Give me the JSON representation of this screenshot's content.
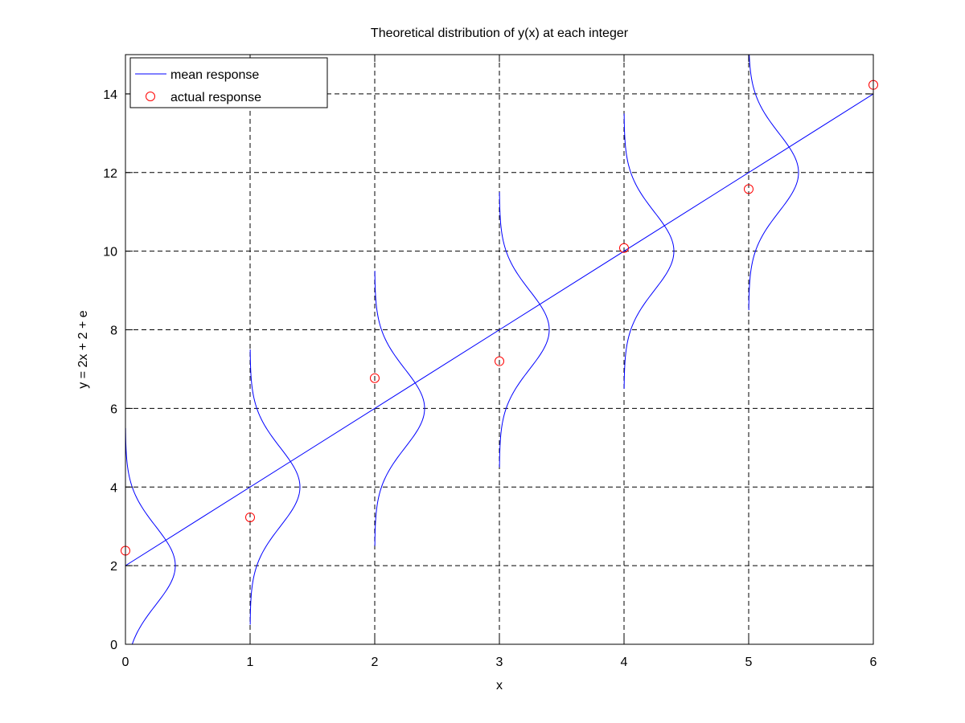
{
  "chart_data": {
    "type": "line",
    "title": "Theoretical distribution of y(x) at each integer",
    "xlabel": "x",
    "ylabel": "y = 2x + 2 + e",
    "xlim": [
      0,
      6
    ],
    "ylim": [
      0,
      15
    ],
    "xticks": [
      0,
      1,
      2,
      3,
      4,
      5,
      6
    ],
    "yticks": [
      0,
      2,
      4,
      6,
      8,
      10,
      12,
      14
    ],
    "grid": true,
    "legend_position": "top-left",
    "colors": {
      "mean": "#0000ff",
      "actual": "#ff0000",
      "grid": "#000000"
    },
    "series": [
      {
        "name": "mean response",
        "kind": "line",
        "x": [
          0,
          6
        ],
        "y": [
          2,
          14
        ]
      },
      {
        "name": "actual response",
        "kind": "marker",
        "marker": "circle",
        "x": [
          0,
          1,
          2,
          3,
          4,
          5,
          6
        ],
        "y": [
          2.38,
          3.23,
          6.77,
          7.2,
          10.08,
          11.58,
          14.23
        ]
      }
    ],
    "density_curves": {
      "centers_x": [
        0,
        1,
        2,
        3,
        4,
        5,
        6
      ],
      "means_y": [
        2,
        4,
        6,
        8,
        10,
        12,
        14
      ],
      "sigma": 1,
      "peak_width_x": 0.4,
      "y_half_range": 3.5
    }
  }
}
